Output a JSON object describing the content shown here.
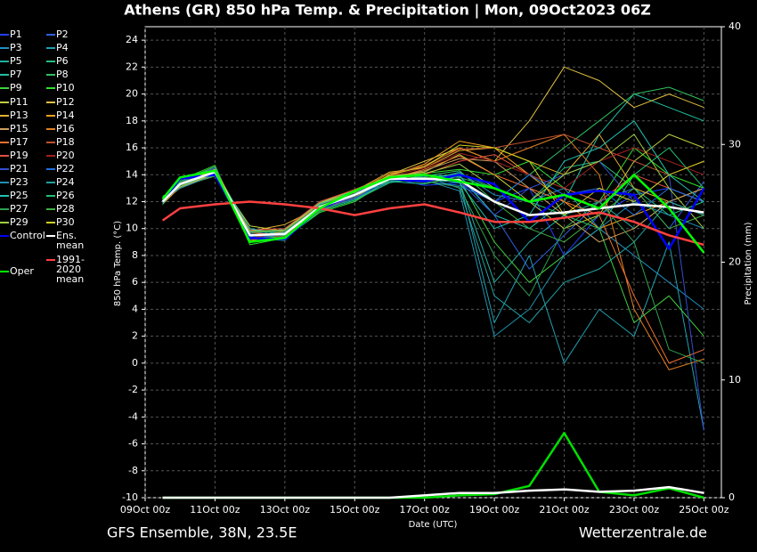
{
  "chart_data": {
    "type": "line",
    "title": "Athens  (GR)  850 hPa Temp. & Precipitation | Mon, 09Oct2023 06Z",
    "xlabel": "Date (UTC)",
    "ylabel": "850 hPa Temp. (°C)",
    "y2label": "Precipitation (mm)",
    "footer_left": "GFS Ensemble, 38N, 23.5E",
    "footer_right": "Wetterzentrale.de",
    "grid": true,
    "xlim": [
      0,
      16.5
    ],
    "xticks": [
      {
        "value": 0,
        "label": "09Oct 00z"
      },
      {
        "value": 2,
        "label": "11Oct 00z"
      },
      {
        "value": 4,
        "label": "13Oct 00z"
      },
      {
        "value": 6,
        "label": "15Oct 00z"
      },
      {
        "value": 8,
        "label": "17Oct 00z"
      },
      {
        "value": 10,
        "label": "19Oct 00z"
      },
      {
        "value": 12,
        "label": "21Oct 00z"
      },
      {
        "value": 14,
        "label": "23Oct 00z"
      },
      {
        "value": 16,
        "label": "25Oct 00z"
      }
    ],
    "ylim": [
      -10,
      25
    ],
    "yticks": [
      -10,
      -8,
      -6,
      -4,
      -2,
      0,
      2,
      4,
      6,
      8,
      10,
      12,
      14,
      16,
      18,
      20,
      22,
      24
    ],
    "y2lim": [
      0,
      40
    ],
    "y2ticks": [
      0,
      10,
      20,
      30,
      40
    ],
    "x": [
      0.5,
      1,
      2,
      3,
      4,
      5,
      6,
      7,
      8,
      9,
      10,
      11,
      12,
      13,
      14,
      15,
      16
    ],
    "series": [
      {
        "name": "P1",
        "color": "#2040ff",
        "values": [
          12.1,
          13,
          14,
          9.8,
          9.4,
          11.8,
          12.6,
          13.8,
          13.2,
          13.4,
          12,
          13,
          8,
          11,
          12.5,
          13,
          12
        ]
      },
      {
        "name": "P2",
        "color": "#3060e0",
        "values": [
          11.9,
          13.4,
          14.5,
          9.2,
          9.8,
          11.4,
          12.2,
          13.5,
          13.9,
          14,
          11,
          7,
          9.5,
          12,
          13,
          10,
          13.5
        ]
      },
      {
        "name": "P3",
        "color": "#2090c0",
        "values": [
          12.3,
          13.1,
          14.1,
          10,
          9.6,
          11.9,
          12.5,
          13.9,
          13.5,
          14.2,
          12.5,
          12,
          13,
          10,
          8,
          6,
          4
        ]
      },
      {
        "name": "P4",
        "color": "#20a0b0",
        "values": [
          12,
          13.3,
          14.3,
          9.4,
          10,
          11.7,
          12.3,
          13.7,
          14,
          13.6,
          3,
          8,
          0,
          4,
          2,
          9,
          -5
        ]
      },
      {
        "name": "P5",
        "color": "#20b0a0",
        "values": [
          12.2,
          13,
          14,
          9.6,
          9.2,
          11.5,
          12.6,
          13.4,
          13.8,
          13.5,
          6,
          9,
          11,
          12,
          10,
          12,
          11
        ]
      },
      {
        "name": "P6",
        "color": "#20c080",
        "values": [
          11.8,
          13.5,
          14.4,
          9,
          9.5,
          11.3,
          12.1,
          13.6,
          13.7,
          14.1,
          13,
          12,
          14.5,
          15,
          13,
          11,
          12
        ]
      },
      {
        "name": "P7",
        "color": "#20c0a0",
        "values": [
          12.1,
          13.2,
          14.2,
          9.9,
          9.7,
          11.8,
          12.7,
          13.5,
          13.3,
          13.9,
          11,
          10,
          12,
          17,
          20,
          19,
          18
        ]
      },
      {
        "name": "P8",
        "color": "#30c060",
        "values": [
          12,
          13.4,
          14.6,
          9.3,
          9.1,
          11.6,
          12.4,
          13.8,
          13.9,
          14.3,
          12,
          14,
          16,
          18,
          20,
          20.5,
          19.5
        ]
      },
      {
        "name": "P9",
        "color": "#40d040",
        "values": [
          12.4,
          13.1,
          13.9,
          9.7,
          9.9,
          12,
          12.8,
          13.7,
          13.4,
          13.7,
          9,
          6,
          8,
          10,
          3,
          5,
          2
        ]
      },
      {
        "name": "P10",
        "color": "#30e030",
        "values": [
          11.9,
          13.6,
          14.7,
          8.8,
          9.3,
          11.2,
          12,
          13.6,
          14.1,
          14.4,
          14,
          15,
          13,
          12,
          16,
          14,
          13
        ]
      },
      {
        "name": "P11",
        "color": "#c0d040",
        "values": [
          12.2,
          13.2,
          14,
          10.2,
          9.8,
          11.9,
          12.9,
          13.9,
          14.2,
          15.5,
          14,
          12,
          10,
          11,
          15,
          17,
          16
        ]
      },
      {
        "name": "P12",
        "color": "#e0c040",
        "values": [
          12,
          13,
          14.1,
          9.5,
          9.4,
          11.7,
          12.5,
          14,
          15,
          16,
          15,
          18,
          22,
          21,
          19,
          20,
          19
        ]
      },
      {
        "name": "P13",
        "color": "#e0b030",
        "values": [
          12.3,
          13.3,
          14.4,
          9.8,
          10.3,
          11.6,
          12.8,
          14.2,
          14.5,
          15.8,
          16,
          15,
          14,
          17,
          13,
          12,
          13
        ]
      },
      {
        "name": "P14",
        "color": "#f0a020",
        "values": [
          11.8,
          13.1,
          14.2,
          9.1,
          9.6,
          11.5,
          12.3,
          13.9,
          14.8,
          16.5,
          16,
          14,
          12,
          10,
          11,
          12,
          11
        ]
      },
      {
        "name": "P15",
        "color": "#d0a060",
        "values": [
          12.1,
          13.4,
          14.5,
          9.6,
          9.2,
          11.4,
          12.6,
          13.8,
          14.3,
          15.2,
          15,
          13,
          11,
          9,
          10,
          12,
          13
        ]
      },
      {
        "name": "P16",
        "color": "#e08020",
        "values": [
          12,
          13.2,
          14.3,
          9.4,
          9.8,
          11.8,
          12.7,
          14.1,
          14.6,
          16,
          15,
          16,
          17,
          14,
          4,
          -0.5,
          0.3
        ]
      },
      {
        "name": "P17",
        "color": "#f07030",
        "values": [
          12.2,
          13,
          14,
          9.7,
          9.5,
          11.6,
          12.5,
          13.7,
          14.4,
          15.4,
          14,
          13,
          12,
          11,
          5,
          0,
          1
        ]
      },
      {
        "name": "P18",
        "color": "#c05030",
        "values": [
          11.9,
          13.5,
          14.6,
          9.3,
          9.7,
          11.3,
          12.4,
          14,
          14.7,
          15.9,
          16,
          16.5,
          17,
          16,
          15,
          14,
          15
        ]
      },
      {
        "name": "P19",
        "color": "#e05040",
        "values": [
          12.3,
          13.3,
          14.2,
          9.9,
          10,
          12,
          12.9,
          13.8,
          14,
          15,
          15.5,
          14,
          13,
          12,
          14,
          13,
          12
        ]
      },
      {
        "name": "P20",
        "color": "#a02020",
        "values": [
          12,
          13.1,
          14.3,
          9.5,
          9.4,
          11.7,
          12.6,
          13.9,
          14.5,
          15.6,
          15,
          14,
          13,
          15,
          16,
          15,
          14
        ]
      },
      {
        "name": "P21",
        "color": "#3050d0",
        "values": [
          12.1,
          13.4,
          14.5,
          9.2,
          9.6,
          11.5,
          12.3,
          13.5,
          13.8,
          13.5,
          11,
          13,
          14,
          15,
          12,
          14,
          -5
        ]
      },
      {
        "name": "P22",
        "color": "#2070e0",
        "values": [
          11.9,
          13.2,
          14.1,
          9.8,
          9.9,
          11.9,
          12.7,
          13.6,
          13.5,
          13.2,
          12,
          14,
          12.5,
          13,
          11,
          13,
          12
        ]
      },
      {
        "name": "P23",
        "color": "#2090b0",
        "values": [
          12.2,
          13,
          14,
          9.6,
          9.3,
          11.6,
          12.5,
          13.7,
          13.6,
          12.8,
          2,
          4,
          8,
          10,
          12,
          11,
          10
        ]
      },
      {
        "name": "P24",
        "color": "#20a0a0",
        "values": [
          12,
          13.3,
          14.4,
          9.4,
          9.7,
          11.4,
          12.2,
          13.5,
          13.9,
          13,
          5,
          3,
          6,
          7,
          9,
          12,
          11
        ]
      },
      {
        "name": "P25",
        "color": "#20c0b0",
        "values": [
          12.3,
          13.1,
          14.2,
          10,
          9.5,
          11.8,
          12.8,
          13.8,
          13.7,
          13.4,
          10,
          11,
          15,
          16,
          18,
          14,
          12
        ]
      },
      {
        "name": "P26",
        "color": "#20c070",
        "values": [
          11.8,
          13.5,
          14.6,
          9,
          9.2,
          11.3,
          12.1,
          13.4,
          14,
          13.8,
          13,
          12,
          11,
          10,
          14,
          16,
          13
        ]
      },
      {
        "name": "P27",
        "color": "#30a050",
        "values": [
          12.1,
          13.2,
          14.2,
          9.7,
          9.8,
          11.7,
          12.6,
          13.6,
          13.5,
          13.1,
          8,
          5,
          10,
          12,
          9,
          1,
          0
        ]
      },
      {
        "name": "P28",
        "color": "#40b040",
        "values": [
          12,
          13.4,
          14.3,
          9.3,
          9.4,
          11.5,
          12.4,
          13.7,
          13.8,
          13.6,
          12,
          10,
          9,
          11,
          13,
          10,
          11
        ]
      },
      {
        "name": "P29",
        "color": "#a0d040",
        "values": [
          12.2,
          13.1,
          14.1,
          9.8,
          9.9,
          11.9,
          12.7,
          13.9,
          14.1,
          14.8,
          13,
          12,
          14,
          15,
          17,
          13,
          10
        ]
      },
      {
        "name": "P30",
        "color": "#d0d020",
        "values": [
          12.1,
          13.3,
          14.4,
          9.5,
          9.6,
          11.6,
          12.5,
          14,
          14.6,
          16.2,
          16,
          15,
          11,
          13,
          12,
          14,
          15
        ]
      },
      {
        "name": "Control",
        "color": "#0000ff",
        "values": [
          12,
          13.7,
          14,
          9.3,
          9.2,
          11.5,
          12.5,
          13.7,
          13.5,
          14,
          13.3,
          10.5,
          12.5,
          12.8,
          12.5,
          8.5,
          13
        ]
      },
      {
        "name": "Ens. mean",
        "color": "#ffffff",
        "values": [
          12,
          13.3,
          14.2,
          9.5,
          9.6,
          11.6,
          12.5,
          13.7,
          13.7,
          13.6,
          12,
          11,
          11.2,
          11.5,
          11.8,
          11.6,
          11.2
        ]
      },
      {
        "name": "1991-2020 mean",
        "color": "#ff4040",
        "values": [
          10.6,
          11.5,
          11.8,
          12,
          11.8,
          11.5,
          11,
          11.5,
          11.8,
          11.2,
          10.5,
          10.5,
          10.8,
          11.2,
          10.5,
          9.5,
          8.8
        ]
      },
      {
        "name": "Oper",
        "color": "#00ff00",
        "values": [
          12.2,
          13.8,
          14.3,
          9,
          9.3,
          11.5,
          12.8,
          13.8,
          14,
          13.5,
          13,
          12,
          12.5,
          11.5,
          14,
          11.5,
          8.2
        ]
      },
      {
        "axis": "y2",
        "color": "#00e000",
        "values": [
          0,
          0,
          0,
          0,
          0,
          0,
          0,
          0,
          0,
          0.2,
          0.3,
          1,
          5.5,
          0.5,
          0.2,
          0.8,
          0
        ]
      },
      {
        "axis": "y2",
        "color": "#ffffff",
        "values": [
          0,
          0,
          0,
          0,
          0,
          0,
          0,
          0,
          0.2,
          0.4,
          0.4,
          0.6,
          0.7,
          0.5,
          0.6,
          0.9,
          0.4
        ]
      }
    ]
  }
}
